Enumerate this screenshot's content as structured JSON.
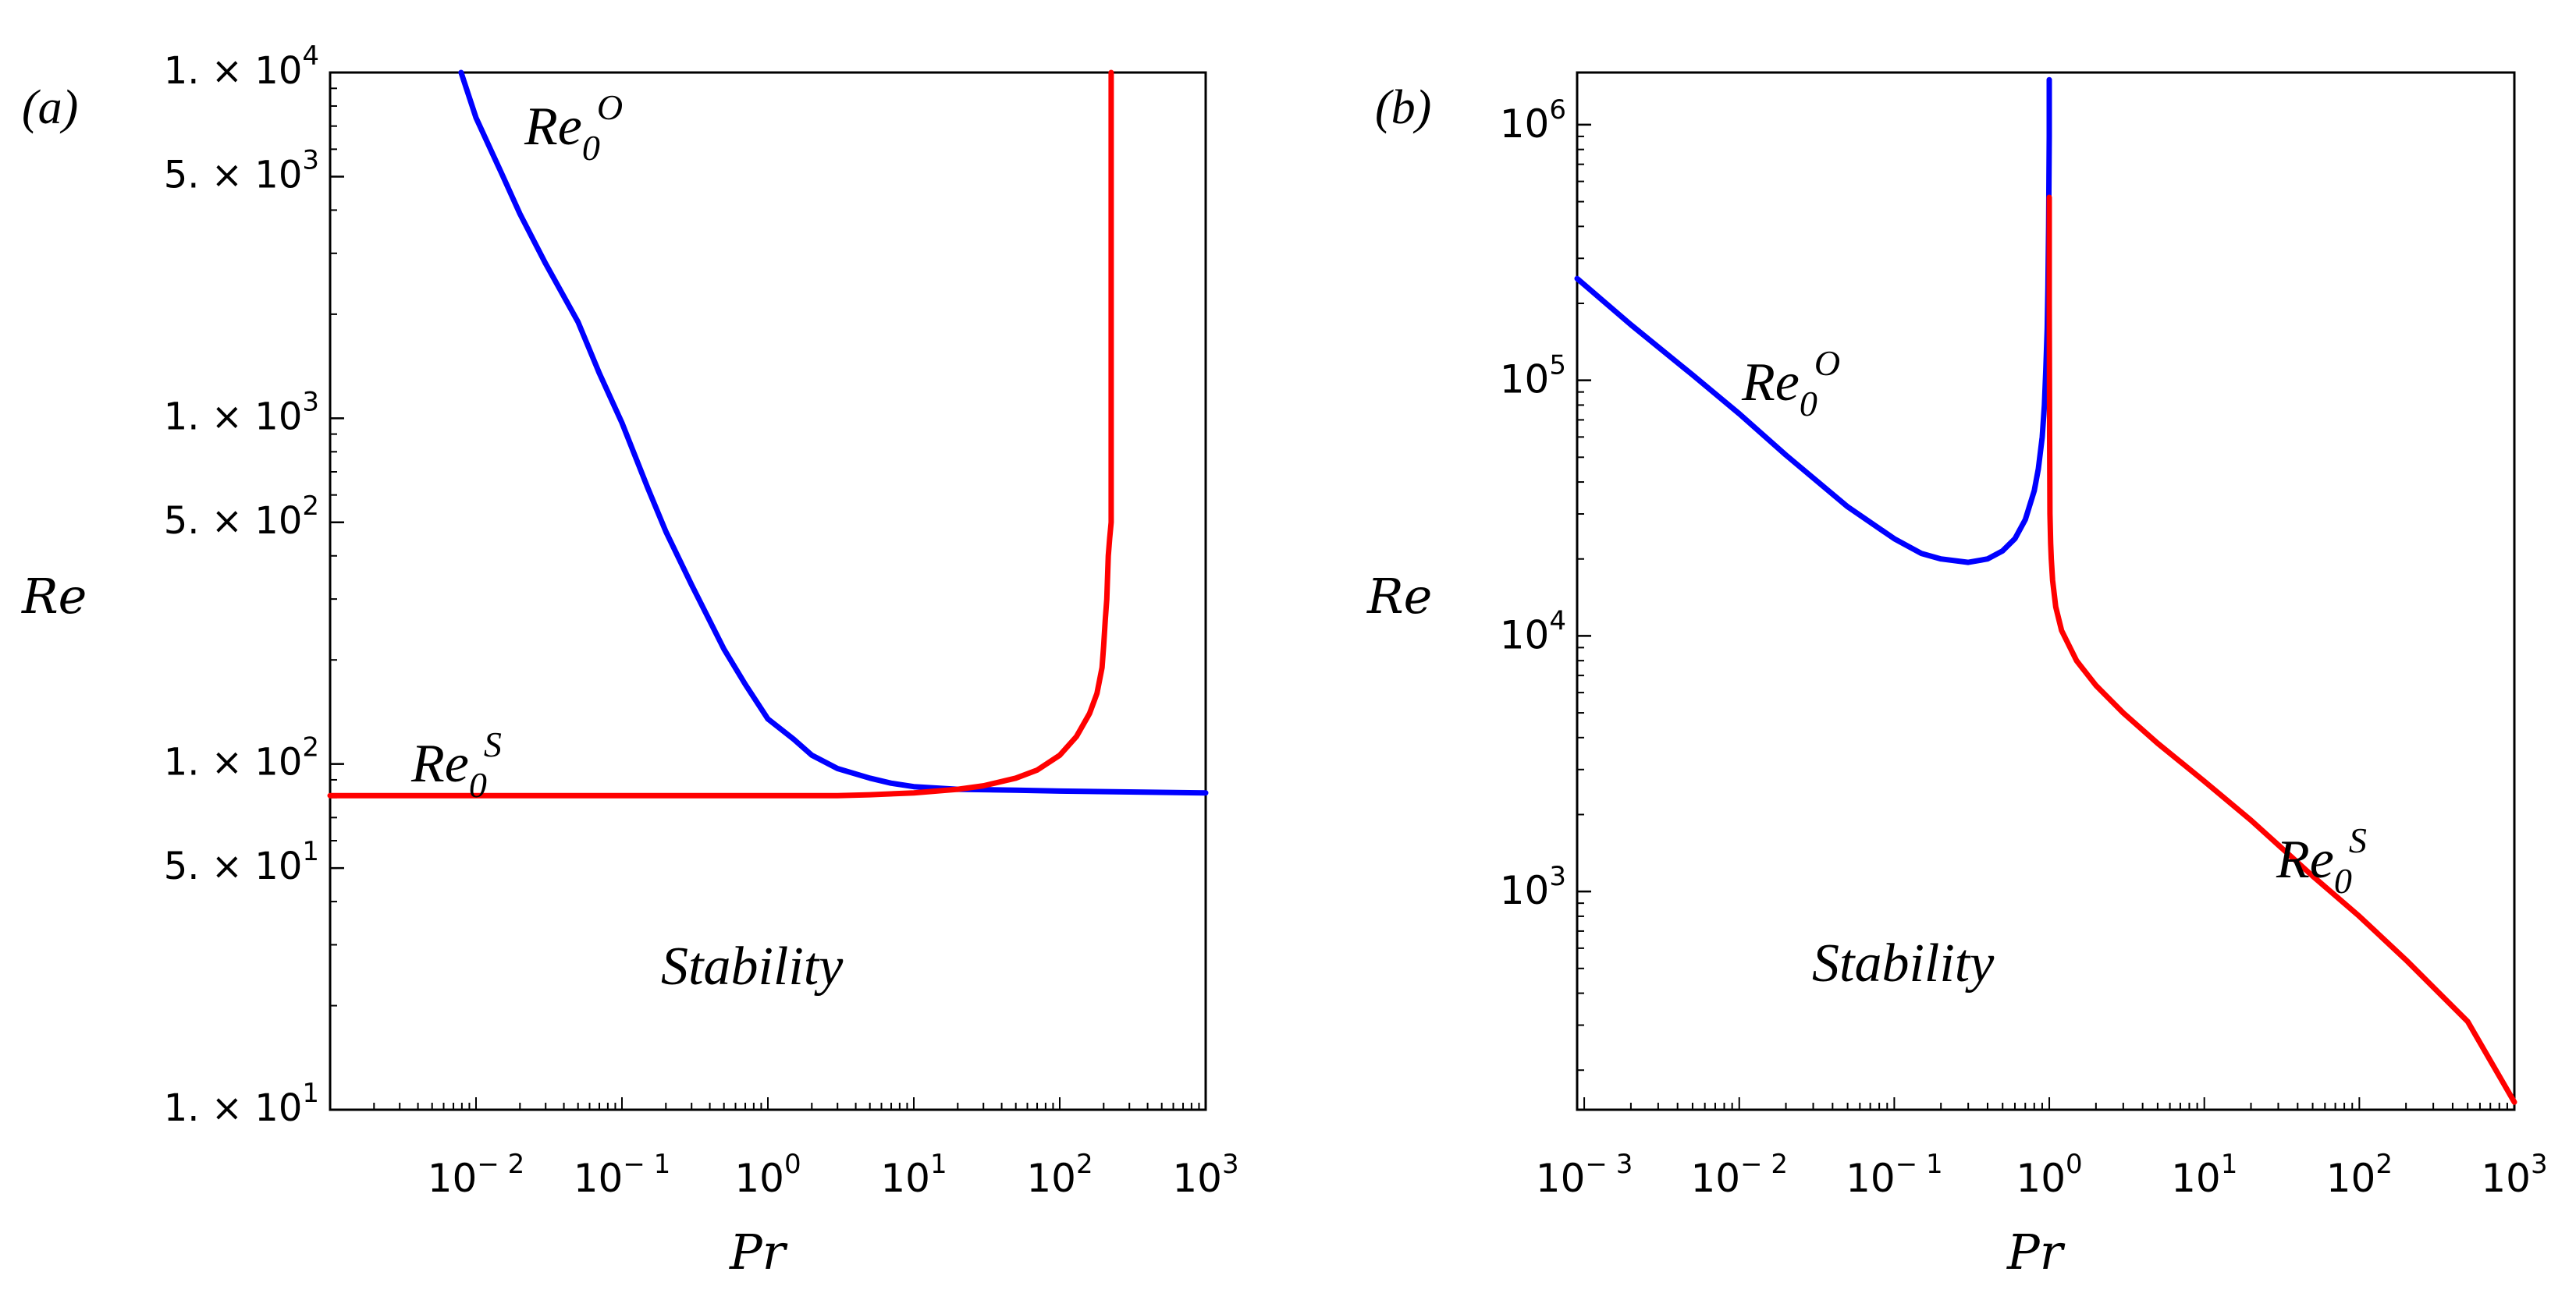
{
  "chart_data": [
    {
      "type": "line",
      "panel_label": "(a)",
      "xlabel": "Pr",
      "ylabel": "Re",
      "xscale": "log",
      "yscale": "log",
      "xlim": [
        0.001,
        1000
      ],
      "ylim": [
        10,
        10000
      ],
      "xticks": [
        {
          "value": 0.01,
          "base": "10",
          "exp": "− 2"
        },
        {
          "value": 0.1,
          "base": "10",
          "exp": "− 1"
        },
        {
          "value": 1,
          "base": "10",
          "exp": "0"
        },
        {
          "value": 10,
          "base": "10",
          "exp": "1"
        },
        {
          "value": 100,
          "base": "10",
          "exp": "2"
        },
        {
          "value": 1000,
          "base": "10",
          "exp": "3"
        }
      ],
      "yticks": [
        {
          "value": 10,
          "mant": "1. × 10",
          "exp": "1"
        },
        {
          "value": 50,
          "mant": "5. × 10",
          "exp": "1"
        },
        {
          "value": 100,
          "mant": "1. × 10",
          "exp": "2"
        },
        {
          "value": 500,
          "mant": "5. × 10",
          "exp": "2"
        },
        {
          "value": 1000,
          "mant": "1. × 10",
          "exp": "3"
        },
        {
          "value": 5000,
          "mant": "5. × 10",
          "exp": "3"
        },
        {
          "value": 10000,
          "mant": "1. × 10",
          "exp": "4"
        }
      ],
      "series": [
        {
          "name": "Re_0^O",
          "color": "#0000ff",
          "x": [
            0.0079,
            0.01,
            0.015,
            0.02,
            0.03,
            0.05,
            0.07,
            0.1,
            0.15,
            0.2,
            0.3,
            0.5,
            0.7,
            1,
            1.5,
            2,
            3,
            5,
            7,
            10,
            20,
            50,
            100,
            300,
            1000
          ],
          "y": [
            10000,
            7400,
            5100,
            3900,
            2800,
            1900,
            1350,
            970,
            630,
            470,
            330,
            215,
            170,
            135,
            118,
            106,
            97,
            91,
            88,
            86,
            84.5,
            84,
            83.5,
            83,
            82.5
          ]
        },
        {
          "name": "Re_0^S",
          "color": "#ff0000",
          "x": [
            0.001,
            0.1,
            1,
            3,
            5,
            10,
            20,
            30,
            50,
            70,
            100,
            130,
            160,
            180,
            195,
            200,
            205,
            210,
            215,
            220,
            225,
            225,
            225
          ],
          "y": [
            81,
            81,
            81,
            81,
            81.5,
            82.5,
            84.5,
            86.5,
            91,
            96,
            106,
            120,
            140,
            160,
            190,
            220,
            260,
            300,
            400,
            450,
            500,
            600,
            10000
          ]
        }
      ],
      "annotations": [
        {
          "base": "Re",
          "sub": "0",
          "sup": "O",
          "series": "Re_0^O"
        },
        {
          "base": "Re",
          "sub": "0",
          "sup": "S",
          "series": "Re_0^S"
        },
        {
          "text": "Stability"
        }
      ]
    },
    {
      "type": "line",
      "panel_label": "(b)",
      "xlabel": "Pr",
      "ylabel": "Re",
      "xscale": "log",
      "yscale": "log",
      "xlim": [
        0.0009,
        1000
      ],
      "ylim": [
        140,
        1600000
      ],
      "xticks": [
        {
          "value": 0.001,
          "base": "10",
          "exp": "− 3"
        },
        {
          "value": 0.01,
          "base": "10",
          "exp": "− 2"
        },
        {
          "value": 0.1,
          "base": "10",
          "exp": "− 1"
        },
        {
          "value": 1,
          "base": "10",
          "exp": "0"
        },
        {
          "value": 10,
          "base": "10",
          "exp": "1"
        },
        {
          "value": 100,
          "base": "10",
          "exp": "2"
        },
        {
          "value": 1000,
          "base": "10",
          "exp": "3"
        }
      ],
      "yticks": [
        {
          "value": 1000,
          "base": "10",
          "exp": "3"
        },
        {
          "value": 10000,
          "base": "10",
          "exp": "4"
        },
        {
          "value": 100000,
          "base": "10",
          "exp": "5"
        },
        {
          "value": 1000000,
          "base": "10",
          "exp": "6"
        }
      ],
      "series": [
        {
          "name": "Re_0^O",
          "color": "#0000ff",
          "x": [
            0.0009,
            0.002,
            0.005,
            0.01,
            0.02,
            0.05,
            0.1,
            0.15,
            0.2,
            0.3,
            0.4,
            0.5,
            0.6,
            0.7,
            0.8,
            0.85,
            0.9,
            0.93,
            0.95,
            0.97,
            0.98,
            0.99,
            0.995,
            1,
            1,
            1
          ],
          "y": [
            250000,
            165000,
            105000,
            74000,
            51000,
            32000,
            24000,
            21000,
            20000,
            19400,
            20000,
            21500,
            24000,
            28500,
            37000,
            45000,
            60000,
            80000,
            110000,
            160000,
            230000,
            400000,
            600000,
            900000,
            1200000,
            1500000
          ]
        },
        {
          "name": "Re_0^S",
          "color": "#ff0000",
          "x": [
            1,
            1,
            1.005,
            1.01,
            1.02,
            1.03,
            1.05,
            1.1,
            1.2,
            1.5,
            2,
            3,
            5,
            10,
            20,
            50,
            100,
            200,
            500,
            1000
          ],
          "y": [
            520000,
            200000,
            60000,
            30000,
            23000,
            20000,
            16500,
            13000,
            10500,
            8000,
            6400,
            5000,
            3800,
            2700,
            1900,
            1150,
            800,
            540,
            310,
            150
          ]
        }
      ],
      "annotations": [
        {
          "base": "Re",
          "sub": "0",
          "sup": "O",
          "series": "Re_0^O"
        },
        {
          "base": "Re",
          "sub": "0",
          "sup": "S",
          "series": "Re_0^S"
        },
        {
          "text": "Stability"
        }
      ]
    }
  ]
}
